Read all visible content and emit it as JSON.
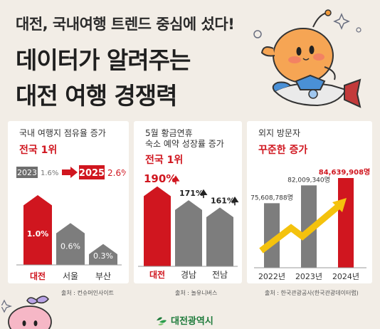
{
  "header": {
    "kicker": "대전, 국내여행 트렌드 중심에 섰다!",
    "title_line1": "데이터가 알려주는",
    "title_line2": "대전 여행 경쟁력"
  },
  "panels": [
    {
      "title": "국내 여행지 점유율 증가",
      "highlight": "전국 1위",
      "year_from": "2023",
      "value_from": "1.6%",
      "year_to": "2025",
      "value_to": "2.6%",
      "source": "출처 : 컨슈머인사이트"
    },
    {
      "title_line1": "5월 황금연휴",
      "title_line2": "숙소 예약 성장률 증가",
      "highlight": "전국 1위",
      "source": "출처 : 놀유니버스"
    },
    {
      "title": "외지 방문자",
      "highlight": "꾸준한 증가",
      "source": "출처 : 한국관광공사(한국관광데이터랩)"
    }
  ],
  "logo_text": "대전광역시",
  "colors": {
    "accent_red": "#d0161f",
    "bar_gray": "#7d7d7d",
    "arrow_yellow": "#f4c20d",
    "background": "#f2ede6",
    "brand_green": "#1d7a3a"
  },
  "chart_data": [
    {
      "type": "bar",
      "categories": [
        "대전",
        "서울",
        "부산"
      ],
      "values": [
        1.0,
        0.6,
        0.3
      ],
      "value_labels": [
        "1.0%",
        "0.6%",
        "0.3%"
      ],
      "highlight_index": 0
    },
    {
      "type": "bar",
      "categories": [
        "대전",
        "경남",
        "전남"
      ],
      "values": [
        190,
        171,
        161
      ],
      "value_labels": [
        "190%",
        "171%",
        "161%"
      ],
      "highlight_index": 0
    },
    {
      "type": "bar",
      "categories": [
        "2022년",
        "2023년",
        "2024년"
      ],
      "values": [
        75608788,
        82009340,
        84639908
      ],
      "value_labels": [
        "75,608,788명",
        "82,009,340명",
        "84,639,908명"
      ],
      "highlight_index": 2
    }
  ]
}
